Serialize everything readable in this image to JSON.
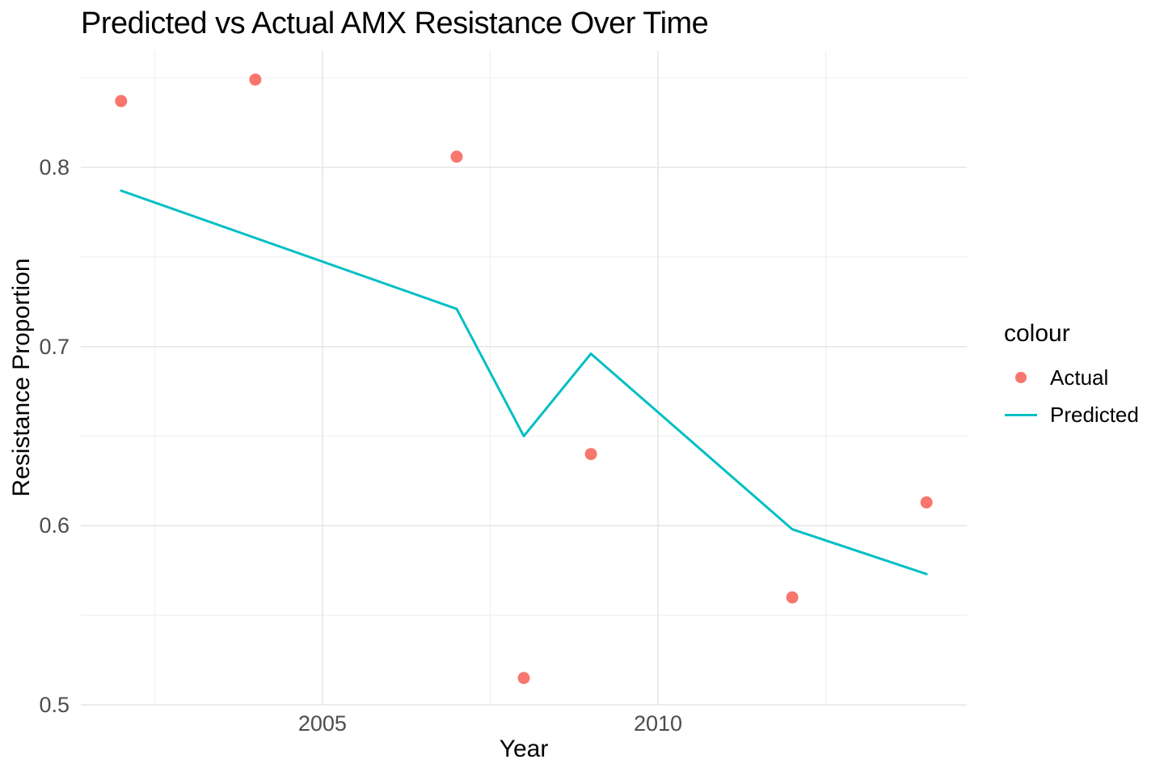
{
  "chart_data": {
    "type": "line",
    "title": "Predicted vs Actual AMX Resistance Over Time",
    "xlabel": "Year",
    "ylabel": "Resistance Proportion",
    "legend_title": "colour",
    "legend_position": "right",
    "grid": true,
    "background": "#ffffff",
    "grid_major_color": "#e5e5e5",
    "grid_minor_color": "#efefef",
    "tick_label_color": "#4d4d4d",
    "xlim": [
      2001.4,
      2014.6
    ],
    "ylim": [
      0.5,
      0.865
    ],
    "x_major_ticks": [
      2005,
      2010
    ],
    "x_tick_labels": [
      "2005",
      "2010"
    ],
    "x_minor_ticks": [
      2002.5,
      2007.5,
      2012.5
    ],
    "y_major_ticks": [
      0.5,
      0.6,
      0.7,
      0.8
    ],
    "y_tick_labels": [
      "0.5",
      "0.6",
      "0.7",
      "0.8"
    ],
    "y_minor_ticks": [
      0.55,
      0.65,
      0.75,
      0.85
    ],
    "series": [
      {
        "name": "Actual",
        "kind": "scatter",
        "color": "#F8766D",
        "point_radius": 7.5,
        "x": [
          2002,
          2004,
          2007,
          2008,
          2009,
          2012,
          2014
        ],
        "y": [
          0.837,
          0.849,
          0.806,
          0.515,
          0.64,
          0.56,
          0.613
        ]
      },
      {
        "name": "Predicted",
        "kind": "line",
        "color": "#00BFC4",
        "line_width": 3,
        "x": [
          2002,
          2007,
          2008,
          2009,
          2012,
          2014
        ],
        "y": [
          0.787,
          0.721,
          0.65,
          0.696,
          0.598,
          0.573
        ]
      }
    ]
  }
}
